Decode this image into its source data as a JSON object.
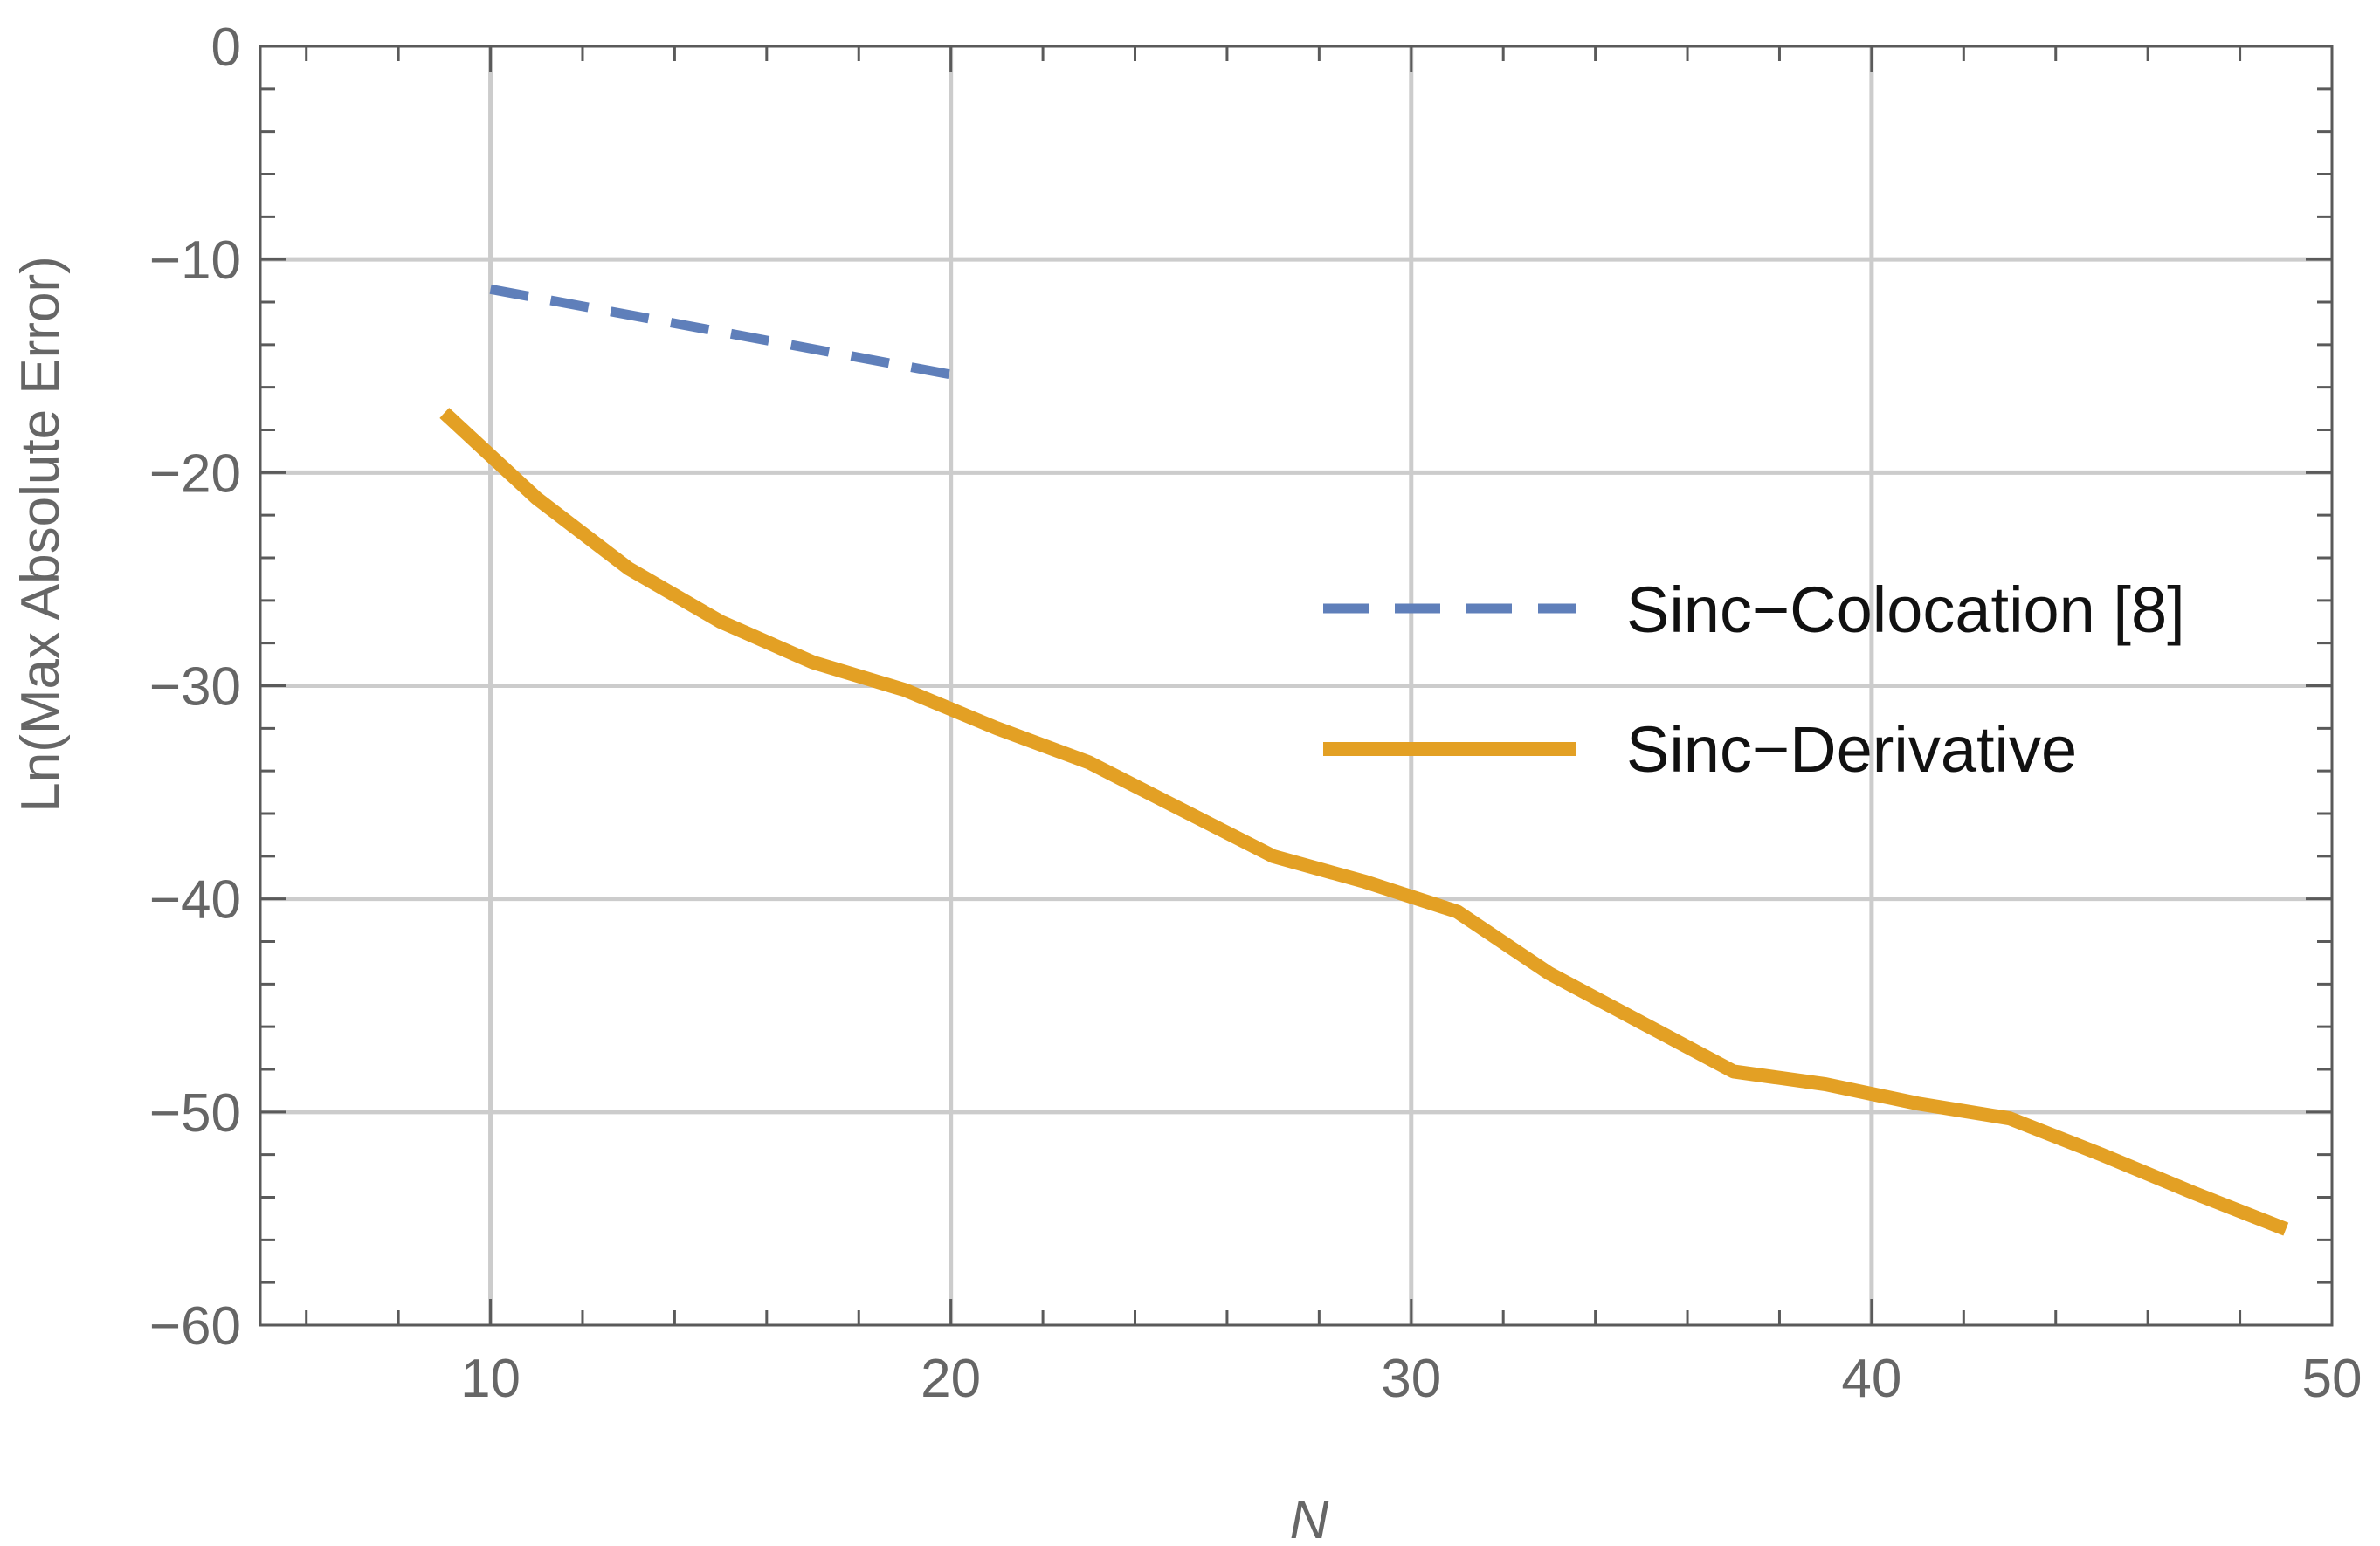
{
  "chart_data": {
    "type": "line",
    "title": "",
    "xlabel": "N",
    "ylabel": "Ln(Max Absolute Error)",
    "xlim": [
      5,
      50
    ],
    "ylim": [
      -60,
      0
    ],
    "x_ticks": [
      10,
      20,
      30,
      40,
      50
    ],
    "y_ticks": [
      0,
      -10,
      -20,
      -30,
      -40,
      -50,
      -60
    ],
    "x_tick_labels": [
      "10",
      "20",
      "30",
      "40",
      "50"
    ],
    "y_tick_labels": [
      "0",
      "−10",
      "−20",
      "−30",
      "−40",
      "−50",
      "−60"
    ],
    "x_minor_step": 2,
    "y_minor_step": 2,
    "grid": true,
    "legend_position": "right",
    "series": [
      {
        "name": "Sinc−Colocation [8]",
        "style": "dashed",
        "color": "#5f7fba",
        "x": [
          10,
          20
        ],
        "y": [
          -11.4,
          -15.4
        ]
      },
      {
        "name": "Sinc−Derivative",
        "style": "solid",
        "color": "#e3a024",
        "x": [
          9,
          11,
          13,
          15,
          17,
          19,
          21,
          23,
          25,
          27,
          29,
          31,
          33,
          35,
          37,
          39,
          41,
          43,
          45,
          47,
          49
        ],
        "y": [
          -17.2,
          -21.2,
          -24.5,
          -27.0,
          -28.9,
          -30.2,
          -32.0,
          -33.6,
          -35.8,
          -38.0,
          -39.2,
          -40.6,
          -43.5,
          -45.8,
          -48.1,
          -48.7,
          -49.6,
          -50.3,
          -52.0,
          -53.8,
          -55.5
        ]
      }
    ]
  }
}
